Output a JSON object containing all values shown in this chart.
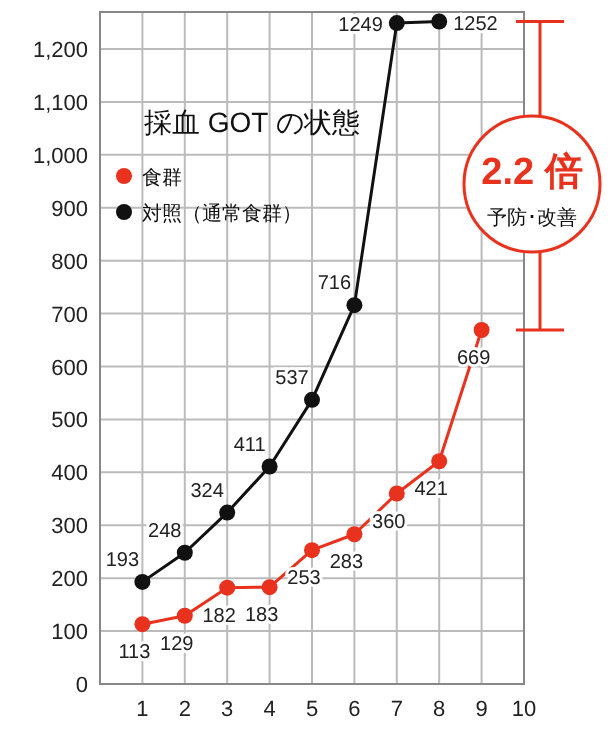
{
  "chart_data": {
    "type": "line",
    "title": "採血 GOT の状態",
    "x": [
      1,
      2,
      3,
      4,
      5,
      6,
      7,
      8,
      9
    ],
    "series": [
      {
        "name": "食群",
        "color": "#e8321e",
        "values": [
          113,
          129,
          182,
          183,
          253,
          283,
          360,
          421,
          669
        ]
      },
      {
        "name": "対照（通常食群）",
        "color": "#111111",
        "values": [
          193,
          248,
          324,
          411,
          537,
          716,
          1249,
          1252,
          null
        ]
      }
    ],
    "xlim": [
      0,
      10
    ],
    "xticks": [
      1,
      2,
      3,
      4,
      5,
      6,
      7,
      8,
      9,
      10
    ],
    "ylim": [
      0,
      1270
    ],
    "yticks": [
      0,
      100,
      200,
      300,
      400,
      500,
      600,
      700,
      800,
      900,
      {
        "value": 1000,
        "label": "1,000"
      },
      {
        "value": 1100,
        "label": "1,100"
      },
      {
        "value": 1200,
        "label": "1,200"
      }
    ],
    "grid": true,
    "legend": "top left",
    "marker": "circle",
    "data_labels": true,
    "annotations": [
      "2.2 倍",
      "予防･改善"
    ]
  }
}
